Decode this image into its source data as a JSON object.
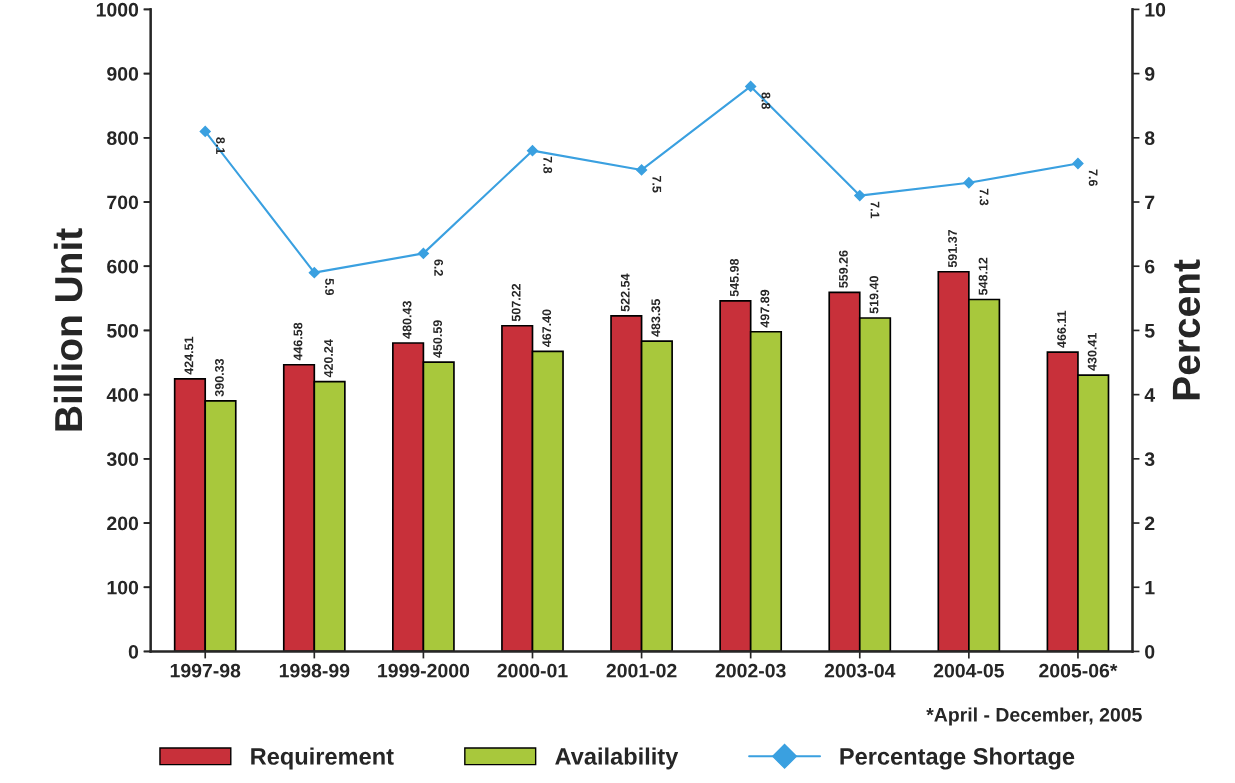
{
  "chart_data": {
    "type": "bar",
    "ylabel": "Billion Unit",
    "y2label": "Percent",
    "categories": [
      "1997-98",
      "1998-99",
      "1999-2000",
      "2000-01",
      "2001-02",
      "2002-03",
      "2003-04",
      "2004-05",
      "2005-06*"
    ],
    "series": [
      {
        "name": "Requirement",
        "color": "#c8303a",
        "values": [
          424.51,
          446.58,
          480.43,
          507.22,
          522.54,
          545.98,
          559.26,
          591.37,
          466.11
        ],
        "value_labels": [
          "424.51",
          "446.58",
          "480.43",
          "507.22",
          "522.54",
          "545.98",
          "559.26",
          "591.37",
          "466.11"
        ]
      },
      {
        "name": "Availability",
        "color": "#a8c83c",
        "values": [
          390.33,
          420.24,
          450.59,
          467.4,
          483.35,
          497.89,
          519.4,
          548.12,
          430.41
        ],
        "value_labels": [
          "390.33",
          "420.24",
          "450.59",
          "467.40",
          "483.35",
          "497.89",
          "519.40",
          "548.12",
          "430.41"
        ]
      },
      {
        "name": "Percentage Shortage",
        "type": "line",
        "axis": "y2",
        "color": "#3aa0e0",
        "marker": "diamond",
        "line_style": "solid",
        "values": [
          8.1,
          5.9,
          6.2,
          7.8,
          7.5,
          8.8,
          7.1,
          7.3,
          7.6
        ],
        "value_labels": [
          "8.1",
          "5.9",
          "6.2",
          "7.8",
          "7.5",
          "8.8",
          "7.1",
          "7.3",
          "7.6"
        ]
      }
    ],
    "ylim": [
      0,
      1000
    ],
    "yticks": [
      0,
      100,
      200,
      300,
      400,
      500,
      600,
      700,
      800,
      900,
      1000
    ],
    "y2lim": [
      0,
      10
    ],
    "y2ticks": [
      0,
      1,
      2,
      3,
      4,
      5,
      6,
      7,
      8,
      9,
      10
    ],
    "grid": false,
    "legend": "bottom",
    "annotations": [
      "*April - December, 2005"
    ]
  }
}
